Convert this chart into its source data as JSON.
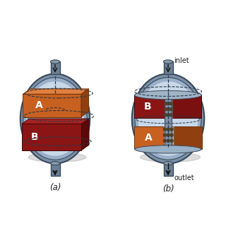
{
  "bg_color": "#ffffff",
  "vessel_outer_color": "#7a8fa8",
  "vessel_mid_color": "#9ab0c8",
  "vessel_inner_color": "#c8d8e8",
  "vessel_edge": "#3a4a5a",
  "pipe_color": "#6a7e94",
  "shadow_color": "#888888",
  "block_A_orange": "#c86020",
  "block_A_orange_dark": "#904010",
  "block_A_orange_top": "#e08040",
  "block_B_red": "#8b1515",
  "block_B_red_dark": "#5a0808",
  "block_B_red_top": "#aa2020",
  "block_B_right_red": "#7a1010",
  "catalyst_color": "#a89080",
  "catalyst_dot": "#504030",
  "dashed_color": "#2a3a4a",
  "arrow_color": "#111111",
  "text_color": "#222222",
  "label_A": "A",
  "label_B": "B",
  "label_a": "(a)",
  "label_b": "(b)",
  "text_inlet": "inlet",
  "text_outlet": "outlet",
  "label_fontsize": 10,
  "sub_fontsize": 8.5,
  "annot_fontsize": 7
}
